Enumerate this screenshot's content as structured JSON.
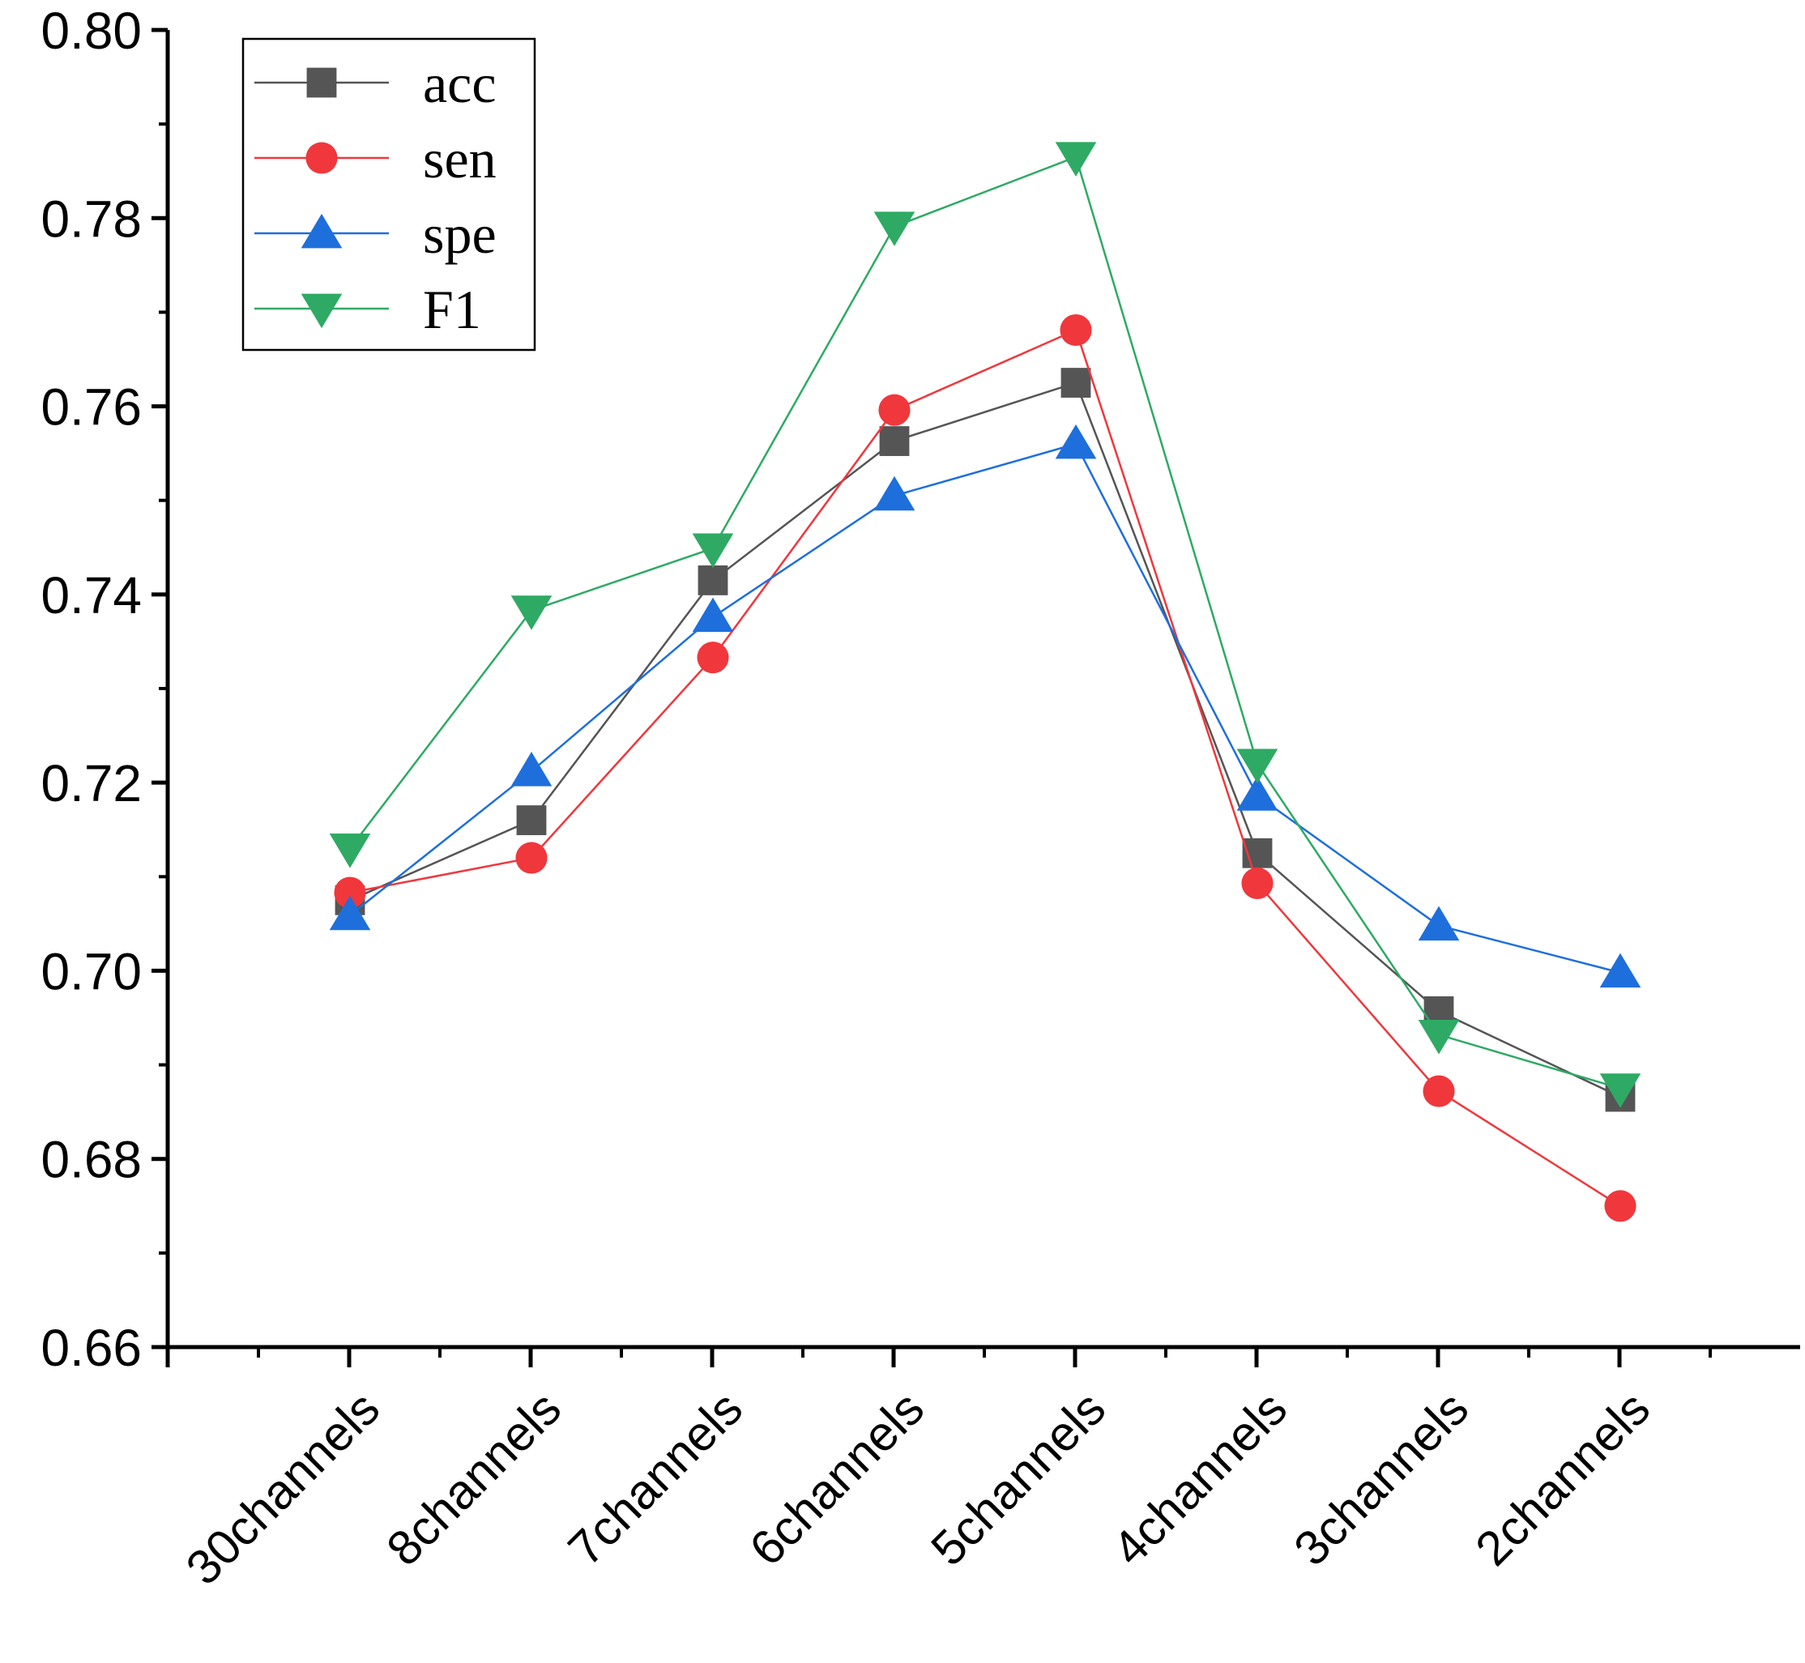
{
  "chart_data": {
    "type": "line",
    "title": "",
    "xlabel": "",
    "ylabel": "",
    "categories": [
      "30channels",
      "8channels",
      "7channels",
      "6channels",
      "5channels",
      "4channels",
      "3channels",
      "2channels"
    ],
    "ylim": [
      0.66,
      0.8
    ],
    "yticks": [
      "0.66",
      "0.68",
      "0.70",
      "0.72",
      "0.74",
      "0.76",
      "0.78",
      "0.80"
    ],
    "legend_position": "top-left",
    "series": [
      {
        "name": "acc",
        "color": "#555555",
        "marker": "square",
        "values": [
          0.7075,
          0.716,
          0.7415,
          0.7563,
          0.7625,
          0.7125,
          0.6957,
          0.6866
        ]
      },
      {
        "name": "sen",
        "color": "#f0373c",
        "marker": "circle",
        "values": [
          0.7083,
          0.712,
          0.7333,
          0.7596,
          0.7681,
          0.7093,
          0.6872,
          0.675
        ]
      },
      {
        "name": "spe",
        "color": "#1e6fdc",
        "marker": "triangle-up",
        "values": [
          0.7059,
          0.7212,
          0.7376,
          0.7505,
          0.756,
          0.7186,
          0.7048,
          0.6998
        ]
      },
      {
        "name": "F1",
        "color": "#2eaa64",
        "marker": "triangle-down",
        "values": [
          0.713,
          0.7383,
          0.7449,
          0.7791,
          0.7865,
          0.722,
          0.6932,
          0.6875
        ]
      }
    ]
  }
}
